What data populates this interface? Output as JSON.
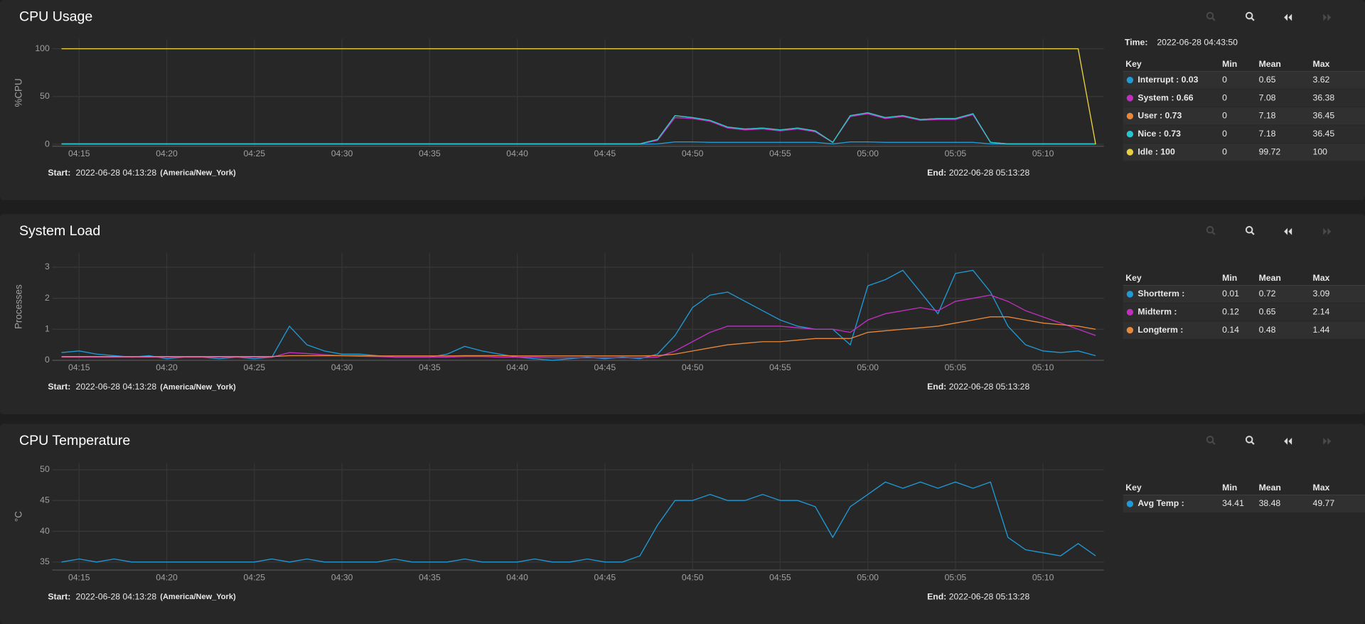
{
  "chart_data": [
    {
      "type": "line",
      "title": "CPU Usage",
      "y_label": "%CPU",
      "x": [
        "04:14",
        "04:15",
        "04:16",
        "04:17",
        "04:18",
        "04:19",
        "04:20",
        "04:21",
        "04:22",
        "04:23",
        "04:24",
        "04:25",
        "04:26",
        "04:27",
        "04:28",
        "04:29",
        "04:30",
        "04:31",
        "04:32",
        "04:33",
        "04:34",
        "04:35",
        "04:36",
        "04:37",
        "04:38",
        "04:39",
        "04:40",
        "04:41",
        "04:42",
        "04:43",
        "04:44",
        "04:45",
        "04:46",
        "04:47",
        "04:48",
        "04:49",
        "04:50",
        "04:51",
        "04:52",
        "04:53",
        "04:54",
        "04:55",
        "04:56",
        "04:57",
        "04:58",
        "04:59",
        "05:00",
        "05:01",
        "05:02",
        "05:03",
        "05:04",
        "05:05",
        "05:06",
        "05:07",
        "05:08",
        "05:09",
        "05:10",
        "05:11",
        "05:12",
        "05:13"
      ],
      "xlim": [
        "04:13:28",
        "05:13:28"
      ],
      "xticks": [
        "04:15",
        "04:20",
        "04:25",
        "04:30",
        "04:35",
        "04:40",
        "04:45",
        "04:50",
        "04:55",
        "05:00",
        "05:05",
        "05:10"
      ],
      "ylim": [
        -2,
        110
      ],
      "yticks": [
        0,
        50,
        100
      ],
      "grid": true,
      "time_label": "Time:",
      "time": "2022-06-28 04:43:50",
      "legend_columns": [
        "Key",
        "Min",
        "Mean",
        "Max"
      ],
      "series": [
        {
          "name": "Interrupt : 0.03",
          "color": "#1f9ad6",
          "min": 0,
          "mean": 0.65,
          "max": 3.62,
          "values": [
            0.1,
            0.1,
            0.1,
            0.1,
            0.1,
            0.1,
            0.1,
            0.1,
            0.1,
            0.1,
            0.1,
            0.1,
            0.1,
            0.1,
            0.1,
            0.1,
            0.1,
            0.1,
            0.1,
            0.1,
            0.1,
            0.1,
            0.1,
            0.1,
            0.1,
            0.1,
            0.1,
            0.1,
            0.1,
            0.1,
            0.1,
            0.1,
            0.1,
            0.1,
            0.5,
            2.5,
            2.5,
            2,
            2,
            2,
            2,
            2,
            2,
            2,
            0.5,
            2.5,
            2.5,
            2,
            2,
            2,
            2,
            2,
            2,
            0.5,
            0.1,
            0.1,
            0.1,
            0.1,
            0.1,
            0.1
          ]
        },
        {
          "name": "System : 0.66",
          "color": "#c030c0",
          "min": 0,
          "mean": 7.08,
          "max": 36.38,
          "values": [
            0.5,
            0.5,
            0.5,
            0.5,
            0.5,
            0.5,
            0.5,
            0.5,
            0.5,
            0.5,
            0.5,
            0.5,
            0.5,
            0.5,
            0.5,
            0.5,
            0.5,
            0.5,
            0.5,
            0.5,
            0.5,
            0.5,
            0.5,
            0.5,
            0.5,
            0.5,
            0.5,
            0.5,
            0.5,
            0.5,
            0.5,
            0.5,
            0.5,
            0.5,
            4,
            28,
            27,
            24,
            17,
            15,
            16,
            14,
            16,
            13,
            2,
            29,
            32,
            27,
            29,
            25,
            26,
            26,
            31,
            2,
            0.5,
            0.5,
            0.5,
            0.5,
            0.5,
            0.5
          ]
        },
        {
          "name": "User : 0.73",
          "color": "#e8883a",
          "min": 0,
          "mean": 7.18,
          "max": 36.45,
          "values": [
            0.5,
            0.5,
            0.5,
            0.5,
            0.5,
            0.5,
            0.5,
            0.5,
            0.5,
            0.5,
            0.5,
            0.5,
            0.5,
            0.5,
            0.5,
            0.5,
            0.5,
            0.5,
            0.5,
            0.5,
            0.5,
            0.5,
            0.5,
            0.5,
            0.5,
            0.5,
            0.5,
            0.5,
            0.5,
            0.5,
            0.5,
            0.5,
            0.5,
            0.5,
            5,
            30,
            28,
            25,
            18,
            16,
            17,
            15,
            17,
            14,
            2,
            30,
            33,
            28,
            30,
            26,
            27,
            27,
            32,
            2,
            0.5,
            0.5,
            0.5,
            0.5,
            0.5,
            0.5
          ]
        },
        {
          "name": "Nice : 0.73",
          "color": "#26c6d0",
          "min": 0,
          "mean": 7.18,
          "max": 36.45,
          "values": [
            0.5,
            0.5,
            0.5,
            0.5,
            0.5,
            0.5,
            0.5,
            0.5,
            0.5,
            0.5,
            0.5,
            0.5,
            0.5,
            0.5,
            0.5,
            0.5,
            0.5,
            0.5,
            0.5,
            0.5,
            0.5,
            0.5,
            0.5,
            0.5,
            0.5,
            0.5,
            0.5,
            0.5,
            0.5,
            0.5,
            0.5,
            0.5,
            0.5,
            0.5,
            5,
            30,
            28,
            25,
            18,
            16,
            17,
            15,
            17,
            14,
            2,
            30,
            33,
            28,
            30,
            26,
            27,
            27,
            32,
            2,
            0.5,
            0.5,
            0.5,
            0.5,
            0.5,
            0.5
          ]
        },
        {
          "name": "Idle : 100",
          "color": "#e8d040",
          "min": 0,
          "mean": 99.72,
          "max": 100,
          "values": [
            100,
            100,
            100,
            100,
            100,
            100,
            100,
            100,
            100,
            100,
            100,
            100,
            100,
            100,
            100,
            100,
            100,
            100,
            100,
            100,
            100,
            100,
            100,
            100,
            100,
            100,
            100,
            100,
            100,
            100,
            100,
            100,
            100,
            100,
            100,
            100,
            100,
            100,
            100,
            100,
            100,
            100,
            100,
            100,
            100,
            100,
            100,
            100,
            100,
            100,
            100,
            100,
            100,
            100,
            100,
            100,
            100,
            100,
            100,
            0
          ]
        }
      ],
      "start_label": "Start:",
      "start": "2022-06-28 04:13:28",
      "start_zone": "(America/New_York)",
      "end_label": "End:",
      "end": "2022-06-28 05:13:28"
    },
    {
      "type": "line",
      "title": "System Load",
      "y_label": "Processes",
      "x": [
        "04:14",
        "04:15",
        "04:16",
        "04:17",
        "04:18",
        "04:19",
        "04:20",
        "04:21",
        "04:22",
        "04:23",
        "04:24",
        "04:25",
        "04:26",
        "04:27",
        "04:28",
        "04:29",
        "04:30",
        "04:31",
        "04:32",
        "04:33",
        "04:34",
        "04:35",
        "04:36",
        "04:37",
        "04:38",
        "04:39",
        "04:40",
        "04:41",
        "04:42",
        "04:43",
        "04:44",
        "04:45",
        "04:46",
        "04:47",
        "04:48",
        "04:49",
        "04:50",
        "04:51",
        "04:52",
        "04:53",
        "04:54",
        "04:55",
        "04:56",
        "04:57",
        "04:58",
        "04:59",
        "05:00",
        "05:01",
        "05:02",
        "05:03",
        "05:04",
        "05:05",
        "05:06",
        "05:07",
        "05:08",
        "05:09",
        "05:10",
        "05:11",
        "05:12",
        "05:13"
      ],
      "xlim": [
        "04:13:28",
        "05:13:28"
      ],
      "xticks": [
        "04:15",
        "04:20",
        "04:25",
        "04:30",
        "04:35",
        "04:40",
        "04:45",
        "04:50",
        "04:55",
        "05:00",
        "05:05",
        "05:10"
      ],
      "ylim": [
        0,
        3.45
      ],
      "yticks": [
        0,
        1,
        2,
        3
      ],
      "grid": true,
      "legend_columns": [
        "Key",
        "Min",
        "Mean",
        "Max"
      ],
      "series": [
        {
          "name": "Shortterm :",
          "color": "#1f9ad6",
          "min": 0.01,
          "mean": 0.72,
          "max": 3.09,
          "values": [
            0.25,
            0.3,
            0.2,
            0.15,
            0.1,
            0.15,
            0.05,
            0.1,
            0.1,
            0.05,
            0.1,
            0.05,
            0.1,
            1.1,
            0.5,
            0.3,
            0.2,
            0.2,
            0.15,
            0.1,
            0.1,
            0.1,
            0.2,
            0.45,
            0.3,
            0.2,
            0.1,
            0.05,
            0,
            0.05,
            0.1,
            0.05,
            0.1,
            0.05,
            0.2,
            0.8,
            1.7,
            2.1,
            2.2,
            1.9,
            1.6,
            1.3,
            1.1,
            1.0,
            1.0,
            0.5,
            2.4,
            2.6,
            2.9,
            2.2,
            1.5,
            2.8,
            2.9,
            2.2,
            1.1,
            0.5,
            0.3,
            0.25,
            0.3,
            0.15
          ]
        },
        {
          "name": "Midterm :",
          "color": "#c030c0",
          "min": 0.12,
          "mean": 0.65,
          "max": 2.14,
          "values": [
            0.1,
            0.1,
            0.1,
            0.1,
            0.1,
            0.1,
            0.1,
            0.1,
            0.1,
            0.1,
            0.1,
            0.1,
            0.1,
            0.25,
            0.22,
            0.18,
            0.15,
            0.13,
            0.12,
            0.1,
            0.1,
            0.1,
            0.1,
            0.12,
            0.12,
            0.1,
            0.1,
            0.1,
            0.08,
            0.08,
            0.08,
            0.08,
            0.08,
            0.08,
            0.1,
            0.3,
            0.6,
            0.9,
            1.1,
            1.1,
            1.1,
            1.1,
            1.05,
            1.0,
            1.0,
            0.9,
            1.3,
            1.5,
            1.6,
            1.7,
            1.6,
            1.9,
            2.0,
            2.1,
            1.9,
            1.6,
            1.4,
            1.2,
            1.0,
            0.8
          ]
        },
        {
          "name": "Longterm :",
          "color": "#e8883a",
          "min": 0.14,
          "mean": 0.48,
          "max": 1.44,
          "values": [
            0.12,
            0.12,
            0.12,
            0.12,
            0.12,
            0.12,
            0.12,
            0.12,
            0.12,
            0.12,
            0.12,
            0.12,
            0.12,
            0.15,
            0.15,
            0.15,
            0.15,
            0.15,
            0.14,
            0.14,
            0.14,
            0.14,
            0.14,
            0.15,
            0.15,
            0.15,
            0.14,
            0.14,
            0.14,
            0.14,
            0.14,
            0.14,
            0.14,
            0.14,
            0.15,
            0.2,
            0.3,
            0.4,
            0.5,
            0.55,
            0.6,
            0.6,
            0.65,
            0.7,
            0.7,
            0.7,
            0.9,
            0.95,
            1.0,
            1.05,
            1.1,
            1.2,
            1.3,
            1.4,
            1.4,
            1.3,
            1.2,
            1.15,
            1.1,
            1.0
          ]
        }
      ],
      "start_label": "Start:",
      "start": "2022-06-28 04:13:28",
      "start_zone": "(America/New_York)",
      "end_label": "End:",
      "end": "2022-06-28 05:13:28"
    },
    {
      "type": "line",
      "title": "CPU Temperature",
      "y_label": "°C",
      "x": [
        "04:14",
        "04:15",
        "04:16",
        "04:17",
        "04:18",
        "04:19",
        "04:20",
        "04:21",
        "04:22",
        "04:23",
        "04:24",
        "04:25",
        "04:26",
        "04:27",
        "04:28",
        "04:29",
        "04:30",
        "04:31",
        "04:32",
        "04:33",
        "04:34",
        "04:35",
        "04:36",
        "04:37",
        "04:38",
        "04:39",
        "04:40",
        "04:41",
        "04:42",
        "04:43",
        "04:44",
        "04:45",
        "04:46",
        "04:47",
        "04:48",
        "04:49",
        "04:50",
        "04:51",
        "04:52",
        "04:53",
        "04:54",
        "04:55",
        "04:56",
        "04:57",
        "04:58",
        "04:59",
        "05:00",
        "05:01",
        "05:02",
        "05:03",
        "05:04",
        "05:05",
        "05:06",
        "05:07",
        "05:08",
        "05:09",
        "05:10",
        "05:11",
        "05:12",
        "05:13"
      ],
      "xlim": [
        "04:13:28",
        "05:13:28"
      ],
      "xticks": [
        "04:15",
        "04:20",
        "04:25",
        "04:30",
        "04:35",
        "04:40",
        "04:45",
        "04:50",
        "04:55",
        "05:00",
        "05:05",
        "05:10"
      ],
      "ylim": [
        33.7,
        51.1
      ],
      "yticks": [
        35,
        40,
        45,
        50
      ],
      "grid": true,
      "legend_columns": [
        "Key",
        "Min",
        "Mean",
        "Max"
      ],
      "series": [
        {
          "name": "Avg Temp :",
          "color": "#1f9ad6",
          "min": 34.41,
          "mean": 38.48,
          "max": 49.77,
          "values": [
            35,
            35.5,
            35,
            35.5,
            35,
            35,
            35,
            35,
            35,
            35,
            35,
            35,
            35.5,
            35,
            35.5,
            35,
            35,
            35,
            35,
            35.5,
            35,
            35,
            35,
            35.5,
            35,
            35,
            35,
            35.5,
            35,
            35,
            35.5,
            35,
            35,
            36,
            41,
            45,
            45,
            46,
            45,
            45,
            46,
            45,
            45,
            44,
            39,
            44,
            46,
            48,
            47,
            48,
            47,
            48,
            47,
            48,
            39,
            37,
            36.5,
            36,
            38,
            36
          ]
        }
      ],
      "start_label": "Start:",
      "start": "2022-06-28 04:13:28",
      "start_zone": "(America/New_York)",
      "end_label": "End:",
      "end": "2022-06-28 05:13:28"
    }
  ]
}
